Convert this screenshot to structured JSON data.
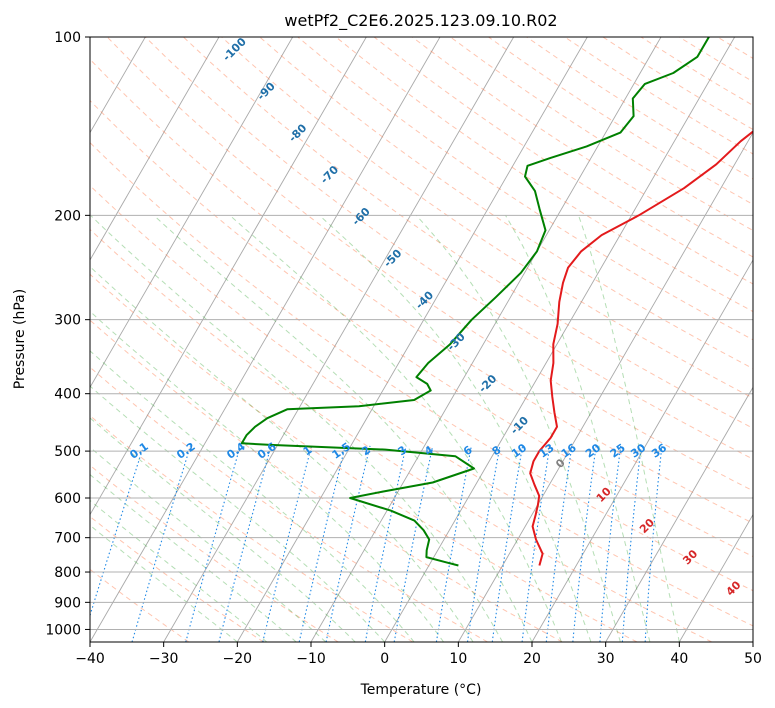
{
  "chart_data": {
    "type": "line",
    "title": "wetPf2_C2E6.2025.123.09.10.R02",
    "xlabel": "Temperature (°C)",
    "ylabel": "Pressure (hPa)",
    "xlim": [
      -40,
      50
    ],
    "ylim": [
      1050,
      100
    ],
    "yscale": "log",
    "grid": true,
    "x_ticks": [
      "−40",
      "−30",
      "−20",
      "−10",
      "0",
      "10",
      "20",
      "30",
      "40",
      "50"
    ],
    "x_tick_values": [
      -40,
      -30,
      -20,
      -10,
      0,
      10,
      20,
      30,
      40,
      50
    ],
    "y_ticks": [
      "100",
      "200",
      "300",
      "400",
      "500",
      "600",
      "700",
      "800",
      "900",
      "1000"
    ],
    "y_tick_values": [
      100,
      200,
      300,
      400,
      500,
      600,
      700,
      800,
      900,
      1000
    ],
    "colors": {
      "temperature": "#e31a1c",
      "dewpoint": "#008000",
      "isotherm": "#a9a9a9",
      "dry_adiabat": "#ff7f50",
      "moist_adiabat": "#2ca02c",
      "mixing_ratio": "#1e88e5",
      "height_label": "#1f6fa8",
      "theta_label": "#d62728"
    },
    "series": [
      {
        "key": "temperature",
        "points": [
          [
            15.0,
            780
          ],
          [
            14.5,
            745
          ],
          [
            12.5,
            705
          ],
          [
            11.0,
            670
          ],
          [
            10.5,
            640
          ],
          [
            10.0,
            615
          ],
          [
            9.5,
            595
          ],
          [
            8.0,
            570
          ],
          [
            6.5,
            545
          ],
          [
            6.0,
            520
          ],
          [
            6.0,
            500
          ],
          [
            6.5,
            475
          ],
          [
            6.5,
            455
          ],
          [
            5.0,
            430
          ],
          [
            3.5,
            405
          ],
          [
            2.0,
            380
          ],
          [
            1.0,
            355
          ],
          [
            -0.5,
            330
          ],
          [
            -1.5,
            305
          ],
          [
            -3.0,
            280
          ],
          [
            -4.0,
            260
          ],
          [
            -4.5,
            245
          ],
          [
            -4.0,
            230
          ],
          [
            -2.5,
            216
          ],
          [
            1.0,
            200
          ],
          [
            5.0,
            180
          ],
          [
            7.5,
            164
          ],
          [
            9.0,
            150
          ],
          [
            11.0,
            138
          ],
          [
            14.5,
            127
          ],
          [
            17.0,
            117
          ],
          [
            19.0,
            110
          ],
          [
            21.5,
            105
          ],
          [
            24.5,
            100
          ]
        ]
      },
      {
        "key": "dewpoint",
        "points": [
          [
            4.0,
            780
          ],
          [
            2.0,
            770
          ],
          [
            -1.0,
            755
          ],
          [
            -1.5,
            735
          ],
          [
            -2.0,
            705
          ],
          [
            -3.5,
            680
          ],
          [
            -5.5,
            655
          ],
          [
            -9.5,
            630
          ],
          [
            -16.0,
            600
          ],
          [
            -12.0,
            585
          ],
          [
            -6.0,
            565
          ],
          [
            -1.5,
            535
          ],
          [
            -5.0,
            510
          ],
          [
            -15.0,
            497
          ],
          [
            -31.0,
            488
          ],
          [
            -35.0,
            485
          ],
          [
            -35.0,
            470
          ],
          [
            -34.5,
            455
          ],
          [
            -33.5,
            440
          ],
          [
            -31.5,
            425
          ],
          [
            -22.0,
            420
          ],
          [
            -15.0,
            410
          ],
          [
            -13.5,
            395
          ],
          [
            -14.5,
            385
          ],
          [
            -16.5,
            375
          ],
          [
            -16.0,
            355
          ],
          [
            -14.5,
            330
          ],
          [
            -13.5,
            300
          ],
          [
            -12.0,
            275
          ],
          [
            -10.5,
            250
          ],
          [
            -10.0,
            230
          ],
          [
            -10.5,
            212
          ],
          [
            -13.0,
            195
          ],
          [
            -15.0,
            182
          ],
          [
            -17.5,
            172
          ],
          [
            -18.0,
            165
          ],
          [
            -15.5,
            160
          ],
          [
            -11.5,
            153
          ],
          [
            -8.0,
            145
          ],
          [
            -7.5,
            136
          ],
          [
            -9.0,
            127
          ],
          [
            -8.5,
            120
          ],
          [
            -5.5,
            115
          ],
          [
            -3.5,
            108
          ],
          [
            -3.5,
            100
          ]
        ]
      }
    ],
    "height_labels": [
      "-100",
      "-90",
      "-80",
      "-70",
      "-60",
      "-50",
      "-40",
      "-30",
      "-20",
      "-10"
    ],
    "height_label_values": [
      -100,
      -90,
      -80,
      -70,
      -60,
      -50,
      -40,
      -30,
      -20,
      -10
    ],
    "mixing_ratio_labels": [
      "0.1",
      "0.2",
      "0.4",
      "0.6",
      "1",
      "1.5",
      "2",
      "3",
      "4",
      "6",
      "8",
      "10",
      "13",
      "16",
      "20",
      "25",
      "30",
      "36"
    ],
    "mixing_ratio_values": [
      0.1,
      0.2,
      0.4,
      0.6,
      1,
      1.5,
      2,
      3,
      4,
      6,
      8,
      10,
      13,
      16,
      20,
      25,
      30,
      36
    ],
    "theta_labels": [
      "0",
      "10",
      "20",
      "30",
      "40"
    ],
    "theta_label_values": [
      0,
      10,
      20,
      30,
      40
    ]
  }
}
